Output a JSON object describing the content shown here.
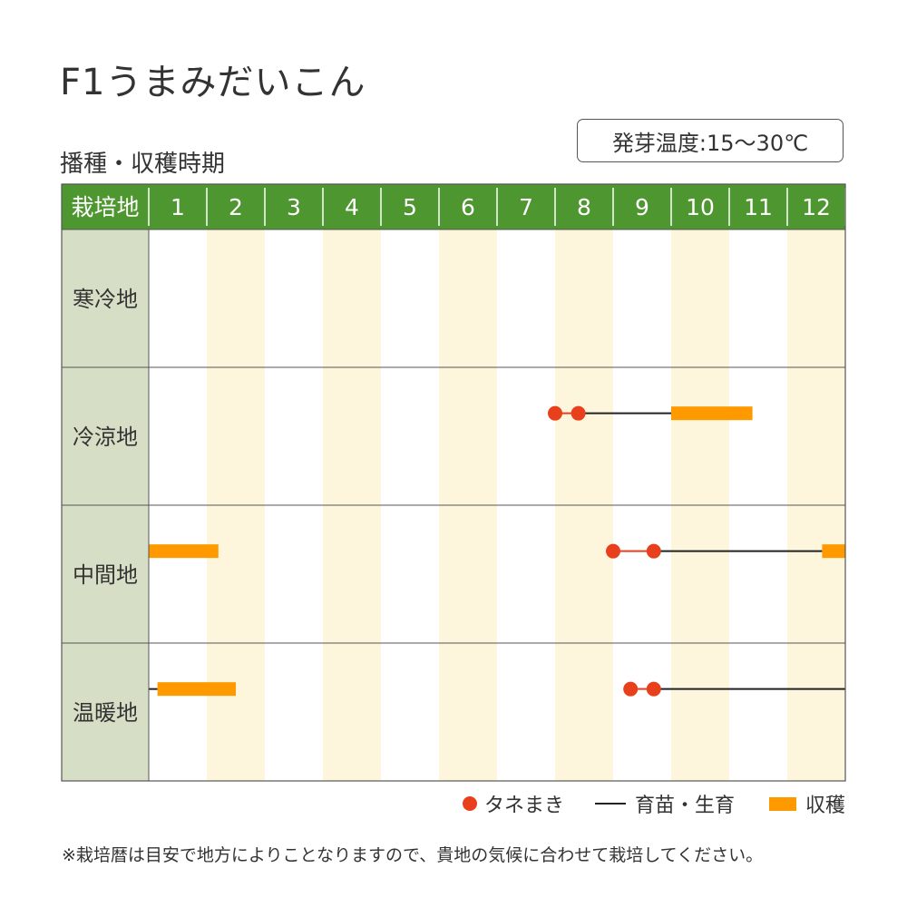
{
  "title": "F1うまみだいこん",
  "subtitle": "播種・収穫時期",
  "germination_temp": "発芽温度:15〜30℃",
  "chart_data": {
    "type": "gantt",
    "header_label": "栽培地",
    "months": [
      "1",
      "2",
      "3",
      "4",
      "5",
      "6",
      "7",
      "8",
      "9",
      "10",
      "11",
      "12"
    ],
    "regions": [
      {
        "name": "寒冷地",
        "sowing": [],
        "growing": [],
        "harvest": []
      },
      {
        "name": "冷涼地",
        "sowing": [
          [
            8.0,
            8.4
          ]
        ],
        "growing": [
          [
            8.4,
            10.0
          ]
        ],
        "harvest": [
          [
            10.0,
            11.4
          ]
        ]
      },
      {
        "name": "中間地",
        "sowing": [
          [
            9.0,
            9.7
          ]
        ],
        "growing": [
          [
            9.7,
            12.6
          ]
        ],
        "harvest": [
          [
            1.0,
            2.2
          ],
          [
            12.6,
            13.0
          ]
        ]
      },
      {
        "name": "温暖地",
        "sowing": [
          [
            9.3,
            9.7
          ]
        ],
        "growing": [
          [
            9.7,
            13.0
          ],
          [
            1.0,
            1.15
          ]
        ],
        "harvest": [
          [
            1.15,
            2.5
          ]
        ]
      }
    ],
    "colors": {
      "header": "#4e9630",
      "region_cell": "#d6dfc6",
      "stripe": "#fdf6dc",
      "sowing": "#e8401c",
      "growing": "#222222",
      "harvest": "#ff9900"
    }
  },
  "legend": {
    "sowing": "タネまき",
    "growing": "育苗・生育",
    "harvest": "収穫"
  },
  "note": "※栽培暦は目安で地方によりことなりますので、貴地の気候に合わせて栽培してください。"
}
